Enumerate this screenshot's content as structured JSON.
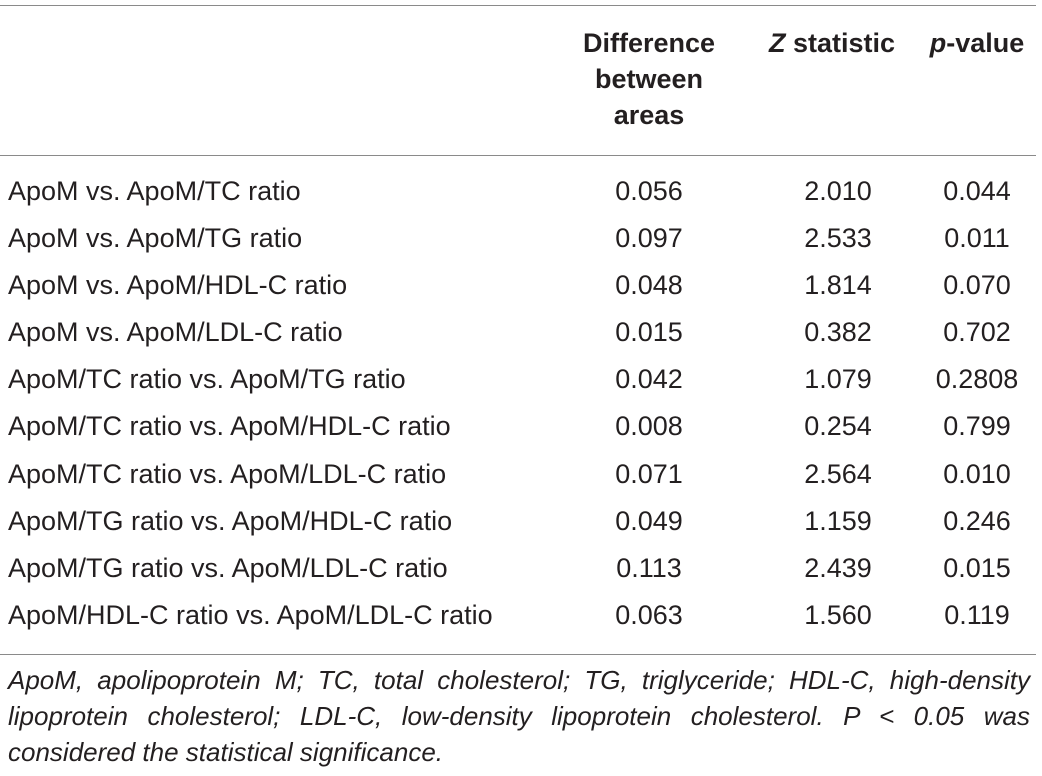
{
  "header": {
    "difference_label": "Difference between areas",
    "z_italic": "Z",
    "z_rest": " statistic",
    "p_italic": "p",
    "p_rest": "-value"
  },
  "rows": [
    {
      "comparison": "ApoM vs. ApoM/TC ratio",
      "difference": "0.056",
      "z": "2.010",
      "p": "0.044"
    },
    {
      "comparison": "ApoM vs. ApoM/TG ratio",
      "difference": "0.097",
      "z": "2.533",
      "p": "0.011"
    },
    {
      "comparison": "ApoM vs. ApoM/HDL-C ratio",
      "difference": "0.048",
      "z": "1.814",
      "p": "0.070"
    },
    {
      "comparison": "ApoM vs. ApoM/LDL-C ratio",
      "difference": "0.015",
      "z": "0.382",
      "p": "0.702"
    },
    {
      "comparison": "ApoM/TC ratio vs. ApoM/TG ratio",
      "difference": "0.042",
      "z": "1.079",
      "p": "0.2808"
    },
    {
      "comparison": "ApoM/TC ratio vs. ApoM/HDL-C ratio",
      "difference": "0.008",
      "z": "0.254",
      "p": "0.799"
    },
    {
      "comparison": "ApoM/TC ratio vs. ApoM/LDL-C ratio",
      "difference": "0.071",
      "z": "2.564",
      "p": "0.010"
    },
    {
      "comparison": "ApoM/TG ratio vs. ApoM/HDL-C ratio",
      "difference": "0.049",
      "z": "1.159",
      "p": "0.246"
    },
    {
      "comparison": "ApoM/TG ratio vs. ApoM/LDL-C ratio",
      "difference": "0.113",
      "z": "2.439",
      "p": "0.015"
    },
    {
      "comparison": "ApoM/HDL-C ratio vs. ApoM/LDL-C ratio",
      "difference": "0.063",
      "z": "1.560",
      "p": "0.119"
    }
  ],
  "footnote": "ApoM, apolipoprotein M; TC, total cholesterol; TG, triglyceride; HDL-C, high-density lipoprotein cholesterol; LDL-C, low-density lipoprotein cholesterol. P < 0.05 was considered the statistical significance."
}
